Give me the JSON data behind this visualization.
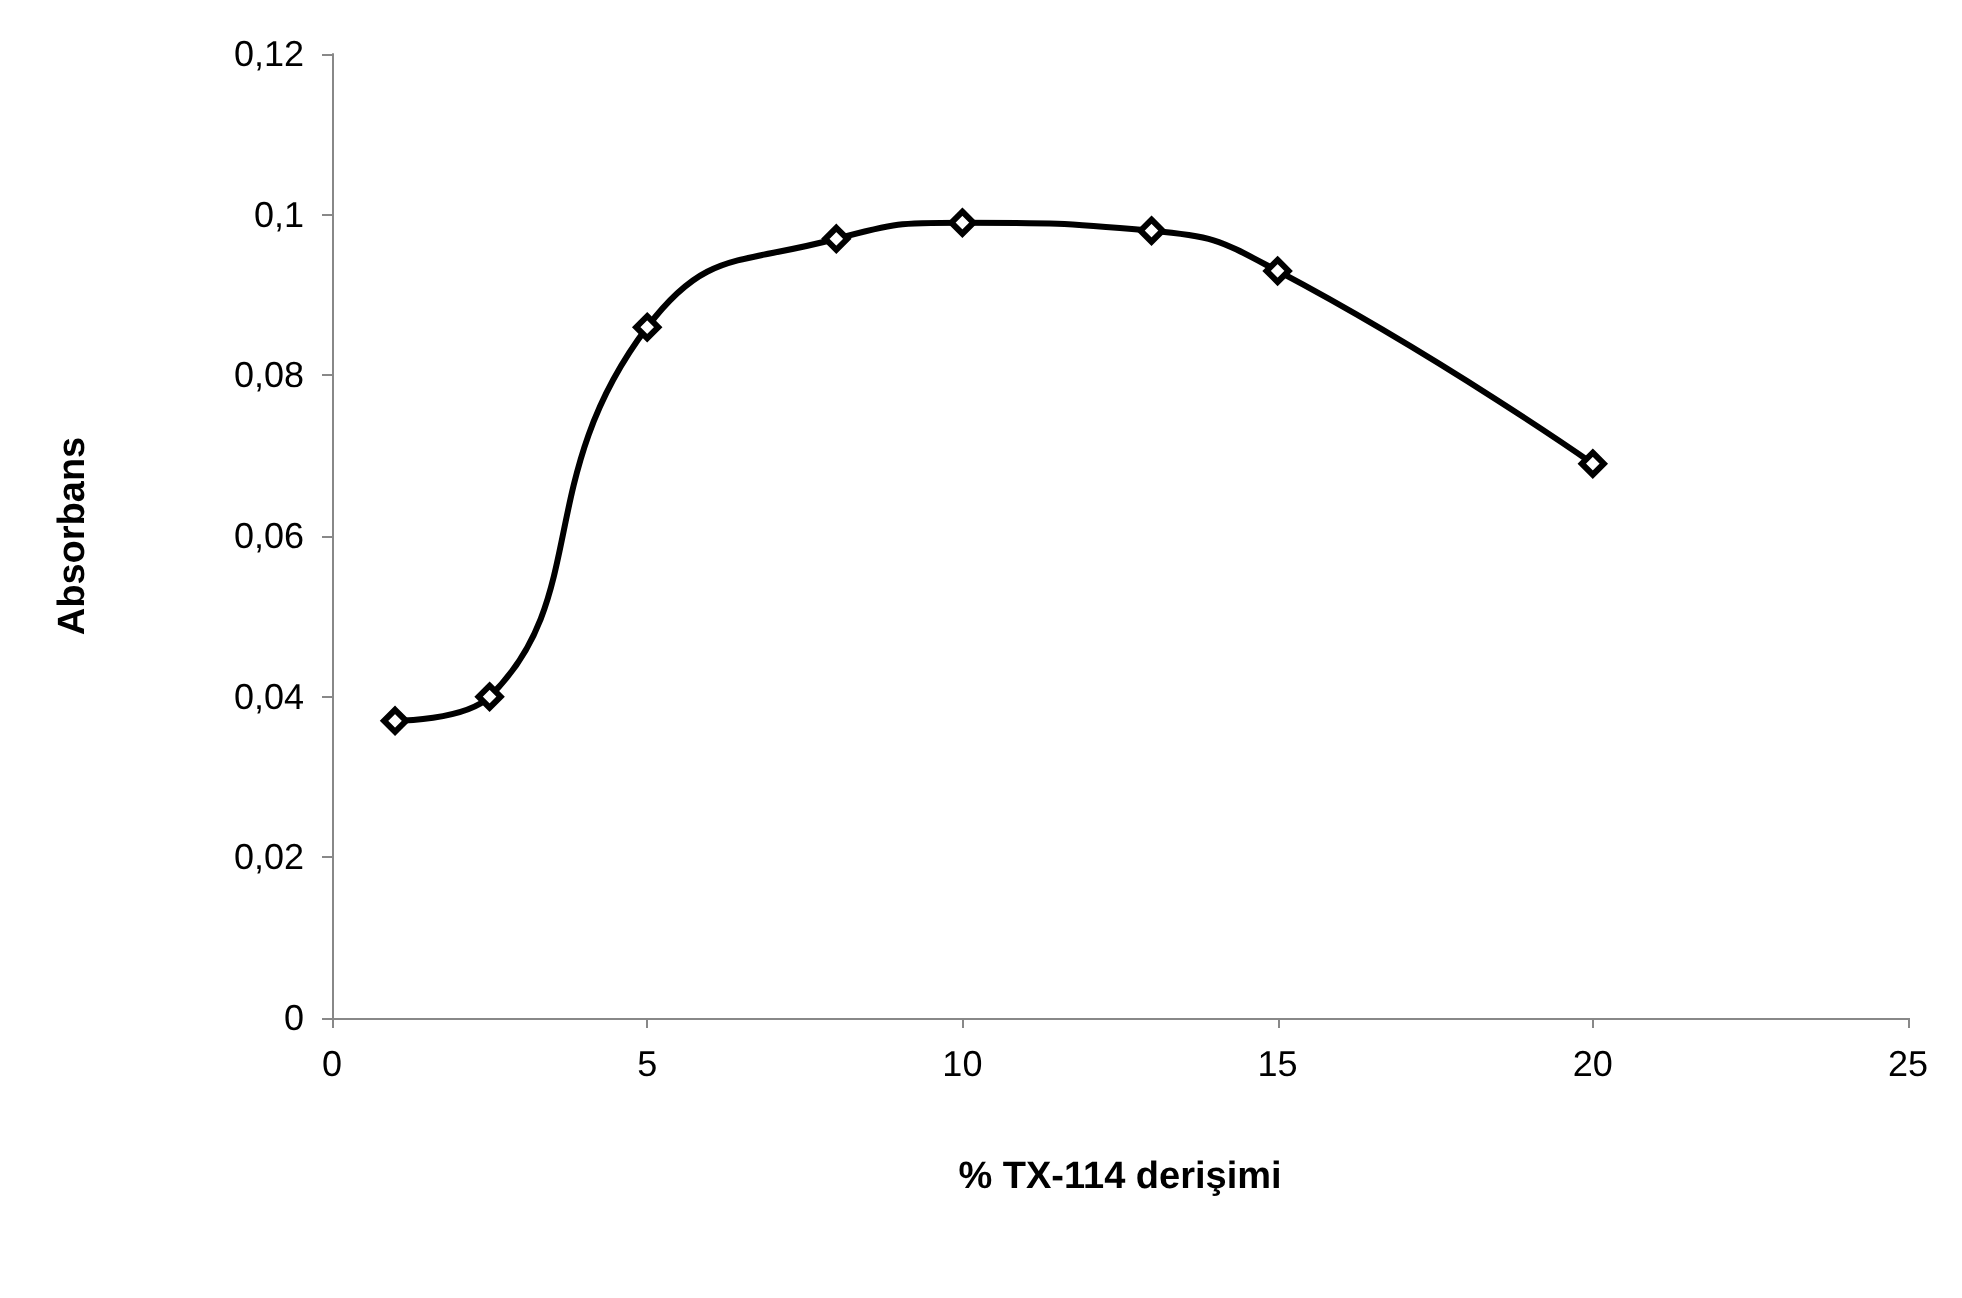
{
  "chart_data": {
    "type": "line",
    "xlabel": "% TX-114 derişimi",
    "ylabel": "Absorbans",
    "x": [
      1,
      2.5,
      5,
      8,
      10,
      13,
      15,
      20
    ],
    "series": [
      {
        "color": "#000000",
        "values": [
          0.037,
          0.04,
          0.086,
          0.097,
          0.099,
          0.098,
          0.093,
          0.069
        ]
      }
    ],
    "xlim": [
      0,
      25
    ],
    "xticks": [
      0,
      5,
      10,
      15,
      20,
      25
    ],
    "ylim": [
      0,
      0.12
    ],
    "yticks": [
      {
        "value": 0,
        "label": "0"
      },
      {
        "value": 0.02,
        "label": "0,02"
      },
      {
        "value": 0.04,
        "label": "0,04"
      },
      {
        "value": 0.06,
        "label": "0,06"
      },
      {
        "value": 0.08,
        "label": "0,08"
      },
      {
        "value": 0.1,
        "label": "0,1"
      },
      {
        "value": 0.12,
        "label": "0,12"
      }
    ],
    "grid": false,
    "marker": "diamond",
    "line_style": "solid"
  }
}
